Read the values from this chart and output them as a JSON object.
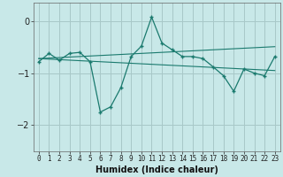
{
  "xlabel": "Humidex (Indice chaleur)",
  "ylabel": "",
  "bg_color": "#c8e8e8",
  "grid_color": "#a8c8c8",
  "line_color": "#1a7a6e",
  "x_data": [
    0,
    1,
    2,
    3,
    4,
    5,
    6,
    7,
    8,
    9,
    10,
    11,
    12,
    13,
    14,
    15,
    16,
    17,
    18,
    19,
    20,
    21,
    22,
    23
  ],
  "y_main": [
    -0.78,
    -0.62,
    -0.75,
    -0.62,
    -0.6,
    -0.78,
    -1.75,
    -1.65,
    -1.28,
    -0.68,
    -0.48,
    0.08,
    -0.42,
    -0.55,
    -0.68,
    -0.68,
    -0.72,
    -0.88,
    -1.05,
    -1.35,
    -0.92,
    -1.0,
    -1.05,
    -0.68
  ],
  "y_trend1": [
    -0.72,
    -0.73,
    -0.74,
    -0.75,
    -0.76,
    -0.77,
    -0.78,
    -0.79,
    -0.8,
    -0.81,
    -0.82,
    -0.83,
    -0.84,
    -0.85,
    -0.86,
    -0.87,
    -0.88,
    -0.89,
    -0.9,
    -0.91,
    -0.92,
    -0.93,
    -0.94,
    -0.95
  ],
  "y_trend2": [
    -0.72,
    -0.71,
    -0.7,
    -0.69,
    -0.68,
    -0.67,
    -0.66,
    -0.65,
    -0.64,
    -0.63,
    -0.62,
    -0.61,
    -0.6,
    -0.59,
    -0.58,
    -0.57,
    -0.56,
    -0.55,
    -0.54,
    -0.53,
    -0.52,
    -0.51,
    -0.5,
    -0.49
  ],
  "xlim": [
    -0.5,
    23.5
  ],
  "ylim": [
    -2.5,
    0.35
  ],
  "yticks": [
    0,
    -1,
    -2
  ],
  "xticks": [
    0,
    1,
    2,
    3,
    4,
    5,
    6,
    7,
    8,
    9,
    10,
    11,
    12,
    13,
    14,
    15,
    16,
    17,
    18,
    19,
    20,
    21,
    22,
    23
  ],
  "xlabel_fontsize": 7,
  "ylabel_fontsize": 7,
  "tick_fontsize": 5.5,
  "ytick_fontsize": 7
}
